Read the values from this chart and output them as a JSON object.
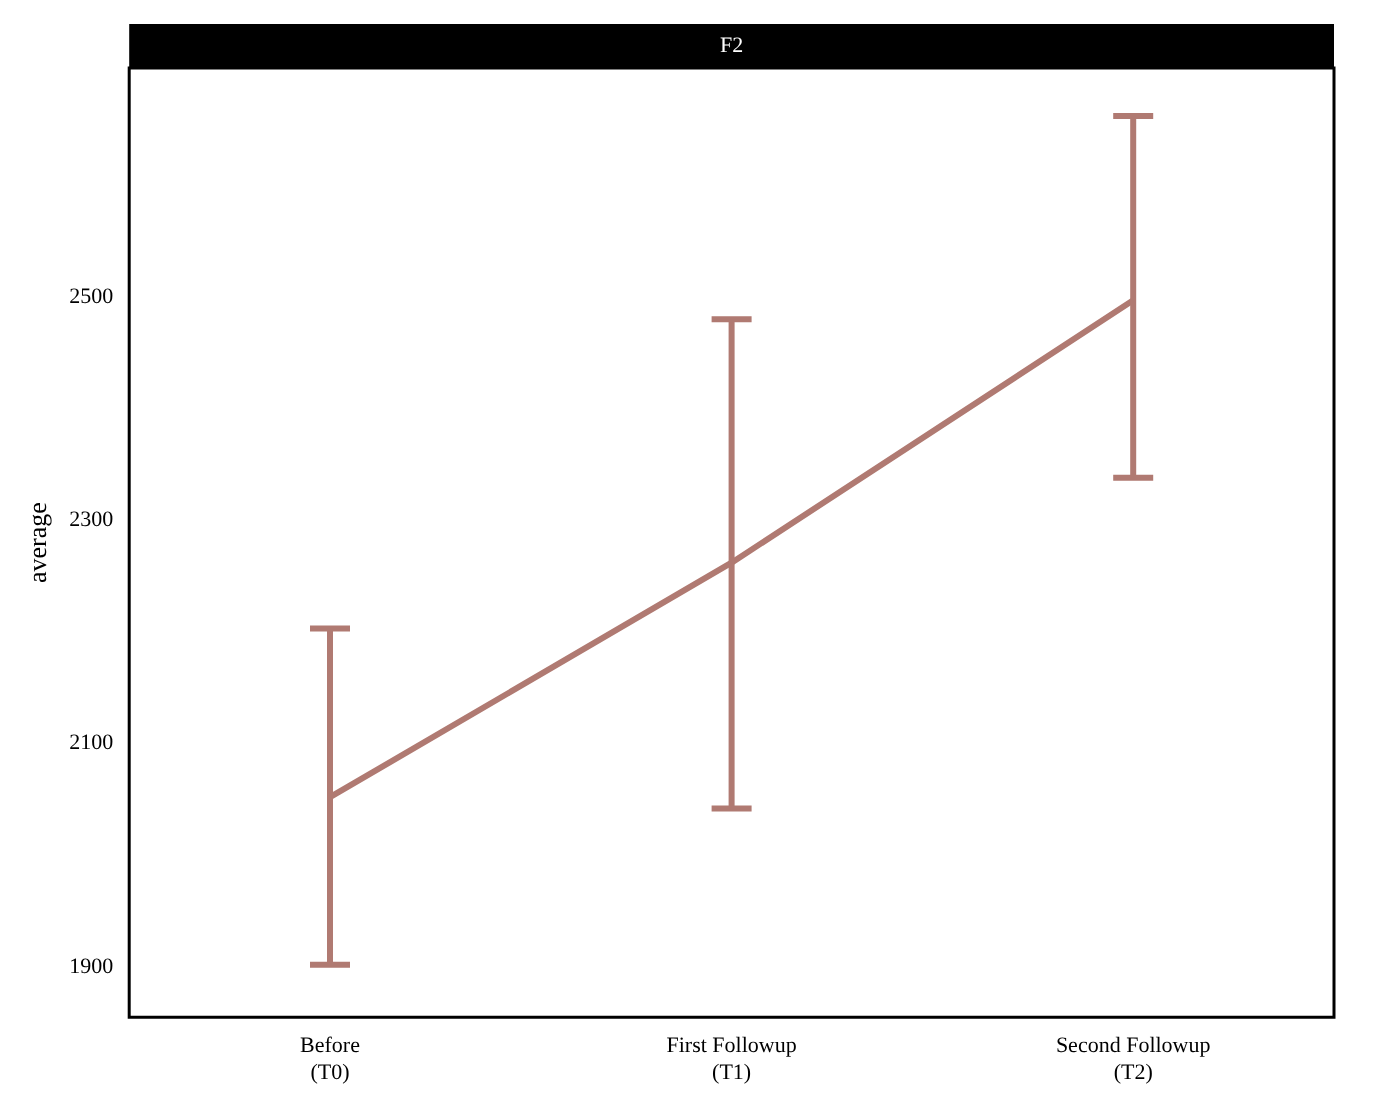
{
  "chart_data": {
    "type": "line",
    "title": "F2",
    "ylabel": "average",
    "categories": [
      "Before\n(T0)",
      "First Followup\n(T1)",
      "Second Followup\n(T2)"
    ],
    "series": [
      {
        "color": "#b07a72",
        "values": [
          2052,
          2262,
          2497
        ],
        "errors": [
          [
            1902,
            2203
          ],
          [
            2042,
            2480
          ],
          [
            2338,
            2662
          ]
        ]
      }
    ],
    "ylim": [
      1855,
      2705
    ],
    "yticks": [
      1900,
      2100,
      2300,
      2500
    ],
    "grid": false,
    "legend": false,
    "marker": "none",
    "line_style": "solid"
  }
}
